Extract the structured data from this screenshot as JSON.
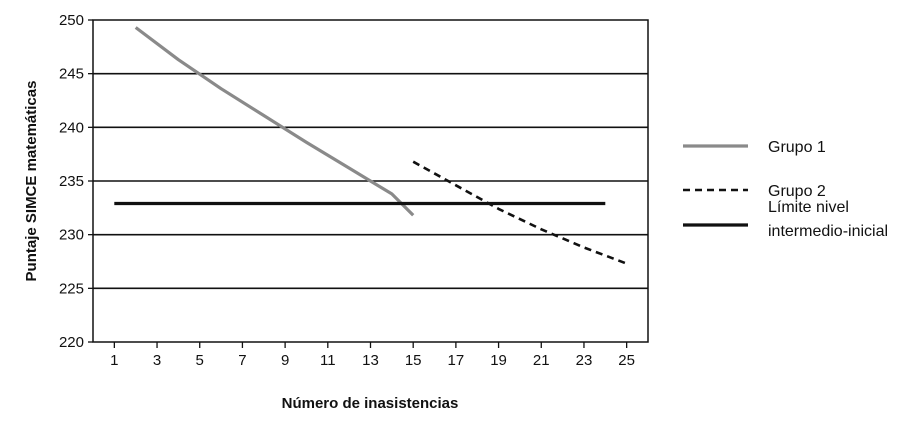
{
  "chart_data": {
    "type": "line",
    "title": "",
    "xlabel": "Número de inasistencias",
    "ylabel": "Puntaje SIMCE matemáticas",
    "xlim": [
      0,
      26
    ],
    "ylim": [
      220,
      250
    ],
    "x_ticks": [
      1,
      3,
      5,
      7,
      9,
      11,
      13,
      15,
      17,
      19,
      21,
      23,
      25
    ],
    "y_ticks": [
      220,
      225,
      230,
      235,
      240,
      245,
      250
    ],
    "grid": "horizontal",
    "legend_position": "right",
    "series": [
      {
        "name": "Grupo 1",
        "style": "solid",
        "color": "#8a8a8a",
        "points": [
          [
            2,
            249.3
          ],
          [
            4,
            246.3
          ],
          [
            6,
            243.6
          ],
          [
            8,
            241.1
          ],
          [
            10,
            238.6
          ],
          [
            12,
            236.2
          ],
          [
            14,
            233.8
          ],
          [
            15,
            231.8
          ]
        ]
      },
      {
        "name": "Grupo 2",
        "style": "dashed",
        "color": "#111111",
        "points": [
          [
            15,
            236.8
          ],
          [
            17,
            234.6
          ],
          [
            19,
            232.4
          ],
          [
            21,
            230.5
          ],
          [
            23,
            228.8
          ],
          [
            25,
            227.3
          ]
        ]
      },
      {
        "name": "Límite nivel intermedio-inicial",
        "name_lines": [
          "Límite nivel",
          "intermedio-inicial"
        ],
        "style": "solid-thick",
        "color": "#111111",
        "points": [
          [
            1,
            232.9
          ],
          [
            24,
            232.9
          ]
        ]
      }
    ]
  }
}
